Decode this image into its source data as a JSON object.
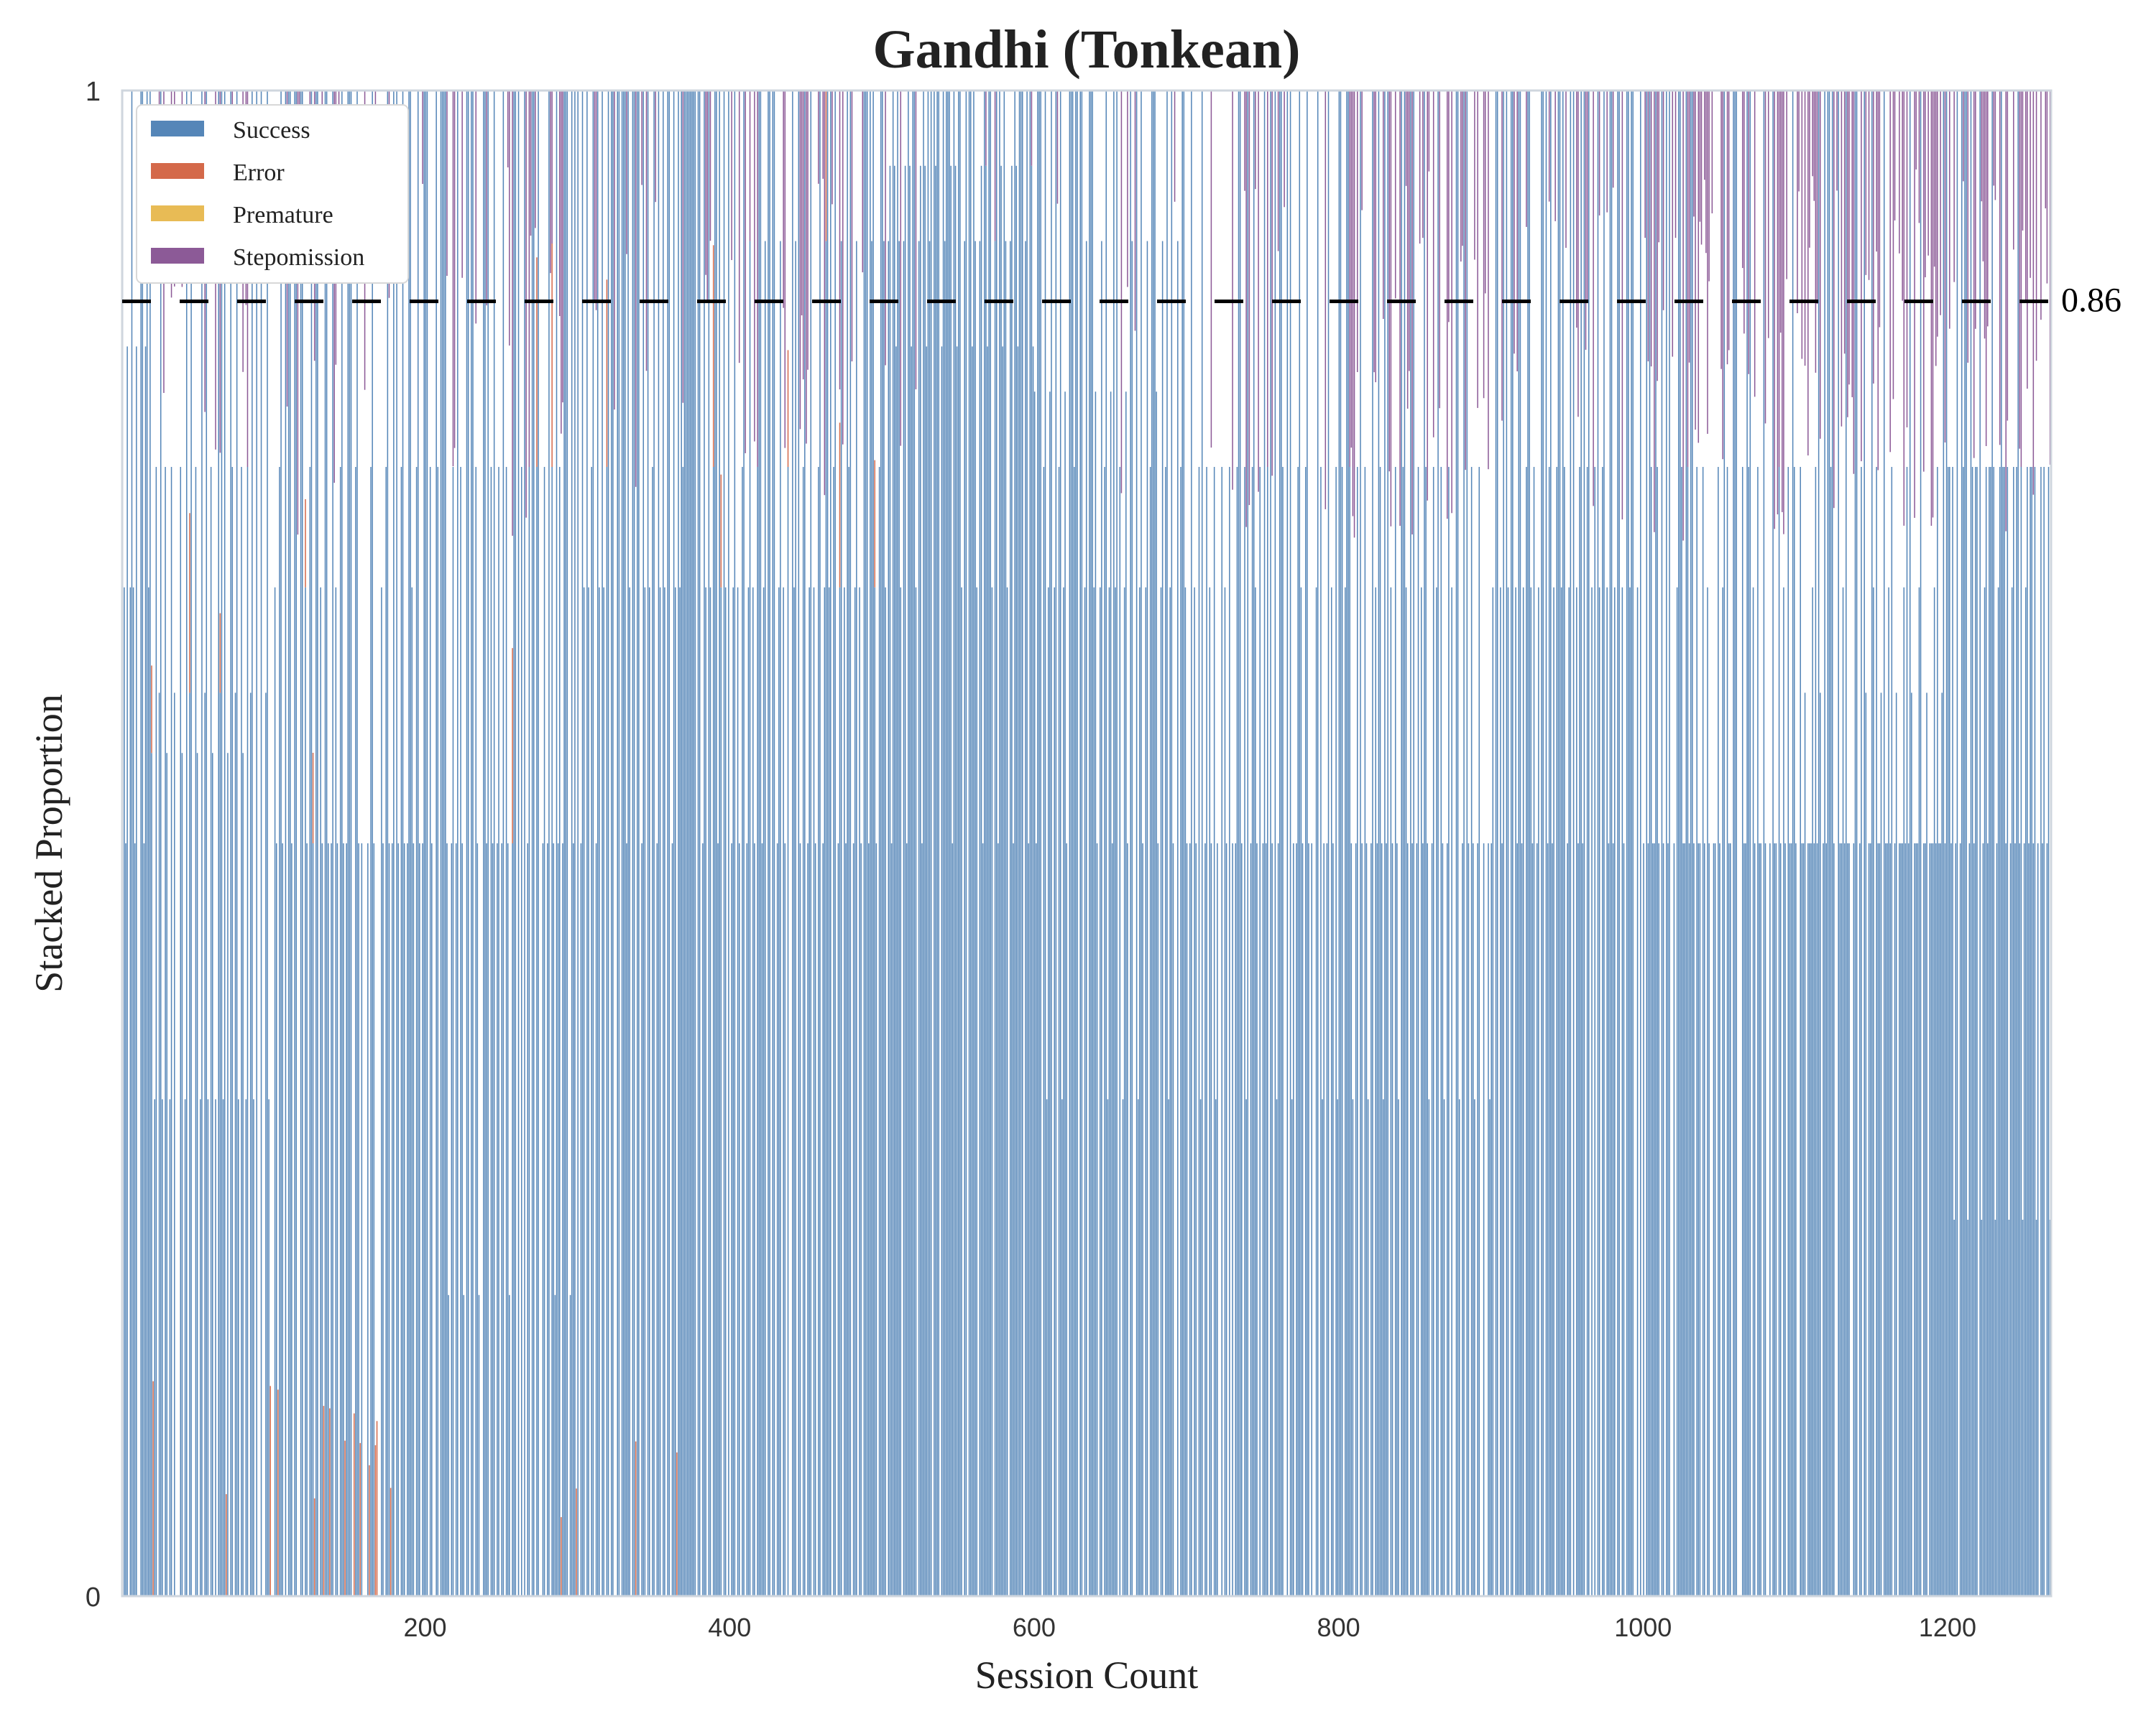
{
  "chart_data": {
    "type": "bar",
    "stacked": true,
    "title": "Gandhi (Tonkean)",
    "xlabel": "Session Count",
    "ylabel": "Stacked Proportion",
    "xlim": [
      1,
      1268
    ],
    "ylim": [
      0,
      1
    ],
    "x_ticks": [
      200,
      400,
      600,
      800,
      1000,
      1200
    ],
    "y_ticks": [
      0,
      1
    ],
    "y_tick_labels": [
      "0",
      "1"
    ],
    "grid": false,
    "legend_position": "top-left",
    "colors": {
      "Success": "#5586b8",
      "Error": "#d4694a",
      "Premature": "#e8bb55",
      "Stepomission": "#8c5a97",
      "reference_line": "#000000"
    },
    "reference_line": {
      "y": 0.86,
      "label": "0.86",
      "style": "dashed"
    },
    "series": [
      {
        "name": "Success"
      },
      {
        "name": "Error"
      },
      {
        "name": "Premature"
      },
      {
        "name": "Stepomission"
      }
    ],
    "segments": [
      {
        "x_start": 1,
        "x_end": 20,
        "success": [
          0.67,
          1.0,
          0.67,
          0.5,
          0.83,
          0.0
        ],
        "error": 0.0,
        "premature": 0.0,
        "stepomission": 0.0
      },
      {
        "x_start": 20,
        "x_end": 100,
        "success": [
          0.75,
          0.56,
          0.0,
          0.33,
          0.75,
          0.0,
          0.6,
          1.0,
          0.33,
          0.0
        ],
        "error": 0.02,
        "premature": 0.0,
        "stepomission": 0.1
      },
      {
        "x_start": 100,
        "x_end": 200,
        "success": [
          0.5,
          1.0,
          0.0,
          0.67,
          0.5,
          0.0,
          0.75,
          1.0,
          0.5,
          0.0
        ],
        "error": 0.03,
        "premature": 0.0,
        "stepomission": 0.08
      },
      {
        "x_start": 200,
        "x_end": 300,
        "success": [
          0.5,
          0.75,
          0.0,
          0.5,
          1.0,
          0.0,
          0.75,
          0.5,
          0.2,
          0.0
        ],
        "error": 0.02,
        "premature": 0.0,
        "stepomission": 0.12
      },
      {
        "x_start": 300,
        "x_end": 400,
        "success": [
          1.0,
          0.67,
          0.0,
          0.75,
          1.0,
          0.0,
          0.5,
          1.0,
          0.67,
          0.0
        ],
        "error": 0.01,
        "premature": 0.0,
        "stepomission": 0.1
      },
      {
        "x_start": 400,
        "x_end": 500,
        "success": [
          0.67,
          0.5,
          0.0,
          0.75,
          1.0,
          0.0,
          0.5,
          0.67,
          0.9,
          0.0
        ],
        "error": 0.01,
        "premature": 0.0,
        "stepomission": 0.15
      },
      {
        "x_start": 500,
        "x_end": 600,
        "success": [
          0.9,
          0.95,
          0.5,
          1.0,
          0.95,
          0.83,
          1.0,
          0.9,
          0.67,
          0.0
        ],
        "error": 0.0,
        "premature": 0.0,
        "stepomission": 0.05
      },
      {
        "x_start": 600,
        "x_end": 700,
        "success": [
          0.67,
          0.9,
          0.0,
          0.75,
          1.0,
          0.33,
          0.67,
          0.8,
          0.5,
          0.0
        ],
        "error": 0.0,
        "premature": 0.0,
        "stepomission": 0.04
      },
      {
        "x_start": 700,
        "x_end": 800,
        "success": [
          0.5,
          0.75,
          0.0,
          0.67,
          0.5,
          0.0,
          0.75,
          0.33,
          0.5,
          0.0
        ],
        "error": 0.0,
        "premature": 0.0,
        "stepomission": 0.08
      },
      {
        "x_start": 800,
        "x_end": 900,
        "success": [
          0.5,
          0.75,
          0.0,
          0.67,
          0.5,
          0.0,
          0.75,
          0.5,
          0.33,
          0.0
        ],
        "error": 0.0,
        "premature": 0.0,
        "stepomission": 0.18
      },
      {
        "x_start": 900,
        "x_end": 1000,
        "success": [
          0.5,
          0.67,
          0.0,
          0.75,
          1.0,
          0.0,
          0.67,
          0.5,
          0.75,
          0.0
        ],
        "error": 0.0,
        "premature": 0.0,
        "stepomission": 0.1
      },
      {
        "x_start": 1000,
        "x_end": 1100,
        "success": [
          0.75,
          0.5,
          0.0,
          0.67,
          0.5,
          0.0,
          0.75,
          0.5,
          0.5,
          0.0
        ],
        "error": 0.0,
        "premature": 0.0,
        "stepomission": 0.2
      },
      {
        "x_start": 1100,
        "x_end": 1200,
        "success": [
          0.5,
          0.5,
          0.5,
          0.67,
          0.5,
          0.75,
          0.5,
          0.5,
          0.6,
          0.0
        ],
        "error": 0.0,
        "premature": 0.0,
        "stepomission": 0.25
      },
      {
        "x_start": 1200,
        "x_end": 1268,
        "success": [
          0.5,
          0.75,
          0.25,
          0.5,
          0.67,
          0.75,
          0.5,
          0.75,
          0.75
        ],
        "error": 0.0,
        "premature": 0.0,
        "stepomission": 0.2
      }
    ]
  }
}
